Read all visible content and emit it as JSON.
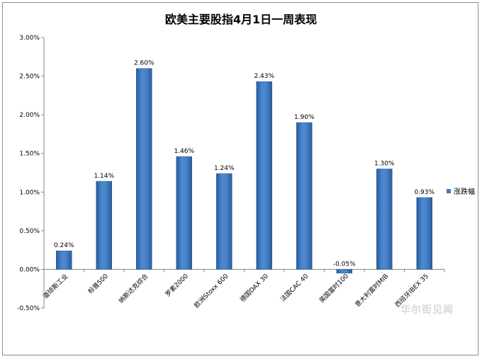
{
  "chart_data": {
    "type": "bar",
    "title": "欧美主要股指4月1日一周表现",
    "categories": [
      "道琼斯工业",
      "标普500",
      "纳斯达克综合",
      "罗素2000",
      "欧洲Stoxx 600",
      "德国DAX 30",
      "法国CAC 40",
      "英国富时100",
      "意大利富时MIB",
      "西班牙IBEX 35"
    ],
    "series": [
      {
        "name": "涨跌幅",
        "values": [
          0.24,
          1.14,
          2.6,
          1.46,
          1.24,
          2.43,
          1.9,
          -0.05,
          1.3,
          0.93
        ]
      }
    ],
    "data_labels": [
      "0.24%",
      "1.14%",
      "2.60%",
      "1.46%",
      "1.24%",
      "2.43%",
      "1.90%",
      "-0.05%",
      "1.30%",
      "0.93%"
    ],
    "y_ticks": [
      "3.00%",
      "2.50%",
      "2.00%",
      "1.50%",
      "1.00%",
      "0.50%",
      "0.00%",
      "-0.50%"
    ],
    "ylim": [
      -0.5,
      3.0
    ],
    "legend_position": "right",
    "grid": false,
    "bar_color": "#3c78c3"
  },
  "watermark": "华尔街见闻"
}
